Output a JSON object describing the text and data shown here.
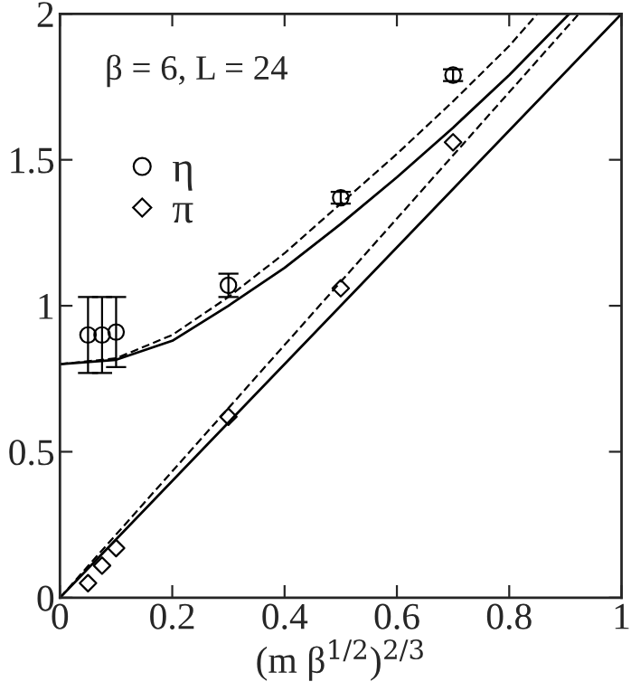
{
  "chart_data": {
    "type": "scatter",
    "xlabel": "(m β$^{1/2}$)$^{2/3}$",
    "annotations": [
      {
        "text": "β = 6, L = 24"
      }
    ],
    "xlim": [
      0,
      1
    ],
    "xticks": [
      0,
      0.2,
      0.4,
      0.6,
      0.8,
      1
    ],
    "ylim": [
      0,
      2
    ],
    "yticks": [
      0,
      0.5,
      1,
      1.5,
      2
    ],
    "grid": false,
    "legend": "top left",
    "series": [
      {
        "name": "η",
        "marker": "circle",
        "color": "#000000",
        "x": [
          0.05,
          0.075,
          0.1,
          0.3,
          0.5,
          0.7
        ],
        "values": [
          0.9,
          0.9,
          0.91,
          1.07,
          1.37,
          1.79
        ],
        "errors": [
          0.13,
          0.13,
          0.12,
          0.04,
          0.02,
          0.02
        ]
      },
      {
        "name": "π",
        "marker": "diamond",
        "color": "#000000",
        "x": [
          0.05,
          0.075,
          0.1,
          0.3,
          0.5,
          0.7
        ],
        "values": [
          0.05,
          0.11,
          0.17,
          0.62,
          1.06,
          1.56
        ]
      },
      {
        "type": "line",
        "line_style": "solid",
        "marker": "none",
        "color": "#000000",
        "x": [
          0,
          0.1,
          0.2,
          0.3,
          0.4,
          0.5,
          0.6,
          0.7,
          0.8,
          0.907
        ],
        "values": [
          0.8,
          0.815,
          0.88,
          1.0,
          1.13,
          1.28,
          1.44,
          1.61,
          1.79,
          2.0
        ]
      },
      {
        "type": "line",
        "line_style": "dashed",
        "marker": "none",
        "color": "#000000",
        "x": [
          0,
          0.1,
          0.2,
          0.3,
          0.4,
          0.5,
          0.6,
          0.7,
          0.8,
          0.85
        ],
        "values": [
          0.8,
          0.82,
          0.9,
          1.03,
          1.18,
          1.35,
          1.52,
          1.7,
          1.89,
          2.0
        ]
      },
      {
        "type": "line",
        "line_style": "solid",
        "marker": "none",
        "color": "#000000",
        "x": [
          0,
          1
        ],
        "values": [
          0,
          2
        ]
      },
      {
        "type": "line",
        "line_style": "dashed",
        "marker": "none",
        "color": "#000000",
        "x": [
          0,
          0.924
        ],
        "values": [
          0,
          2
        ]
      }
    ]
  }
}
